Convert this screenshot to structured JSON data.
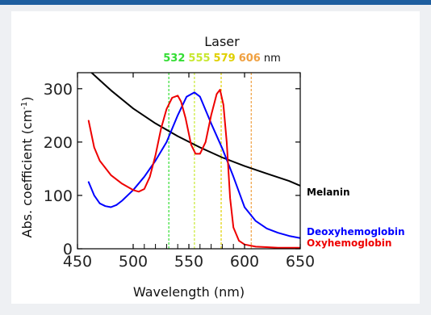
{
  "chart_data": {
    "type": "line",
    "xlabel": "Wavelength (nm)",
    "ylabel": "Abs. coefficient (cm",
    "ylabel_sup": "-1",
    "ylabel_tail": ")",
    "xlim": [
      450,
      650
    ],
    "ylim": [
      0,
      330
    ],
    "x_ticks": [
      450,
      500,
      550,
      600,
      650
    ],
    "y_ticks": [
      0,
      100,
      200,
      300
    ],
    "x_minor_ticks": [
      510,
      520,
      530,
      540,
      560,
      570,
      580,
      590
    ],
    "grid": false,
    "laser": {
      "title": "Laser",
      "unit": "nm",
      "lines": [
        {
          "label": "532",
          "wavelength": 532,
          "color": "#33dd33"
        },
        {
          "label": "555",
          "wavelength": 555,
          "color": "#c8e830"
        },
        {
          "label": "579",
          "wavelength": 579,
          "color": "#e0d000"
        },
        {
          "label": "606",
          "wavelength": 606,
          "color": "#f0a040"
        }
      ]
    },
    "series": [
      {
        "name": "Melanin",
        "color": "#000000",
        "x": [
          460,
          480,
          500,
          520,
          540,
          560,
          580,
          600,
          620,
          640,
          650
        ],
        "y": [
          335,
          297,
          263,
          235,
          211,
          190,
          171,
          155,
          141,
          127,
          118
        ]
      },
      {
        "name": "Deoxyhemoglobin",
        "color": "#0000ff",
        "x": [
          460,
          465,
          470,
          475,
          480,
          485,
          490,
          500,
          510,
          520,
          530,
          540,
          548,
          555,
          560,
          565,
          570,
          580,
          590,
          600,
          610,
          620,
          630,
          640,
          650
        ],
        "y": [
          125,
          100,
          85,
          80,
          78,
          82,
          90,
          110,
          135,
          165,
          200,
          250,
          285,
          293,
          285,
          260,
          235,
          188,
          135,
          78,
          52,
          38,
          30,
          24,
          20
        ]
      },
      {
        "name": "Oxyhemoglobin",
        "color": "#ee0000",
        "x": [
          460,
          465,
          470,
          480,
          490,
          500,
          505,
          510,
          515,
          520,
          525,
          530,
          535,
          540,
          543,
          547,
          552,
          556,
          560,
          565,
          570,
          575,
          578,
          581,
          584,
          587,
          590,
          595,
          600,
          610,
          620,
          630,
          640,
          650
        ],
        "y": [
          240,
          190,
          165,
          138,
          122,
          110,
          107,
          112,
          135,
          175,
          225,
          262,
          283,
          287,
          276,
          245,
          195,
          178,
          178,
          200,
          250,
          290,
          298,
          270,
          200,
          95,
          40,
          15,
          8,
          4,
          3,
          2,
          2,
          2
        ]
      }
    ],
    "legend": [
      "Melanin",
      "Deoxyhemoglobin",
      "Oxyhemoglobin"
    ]
  }
}
